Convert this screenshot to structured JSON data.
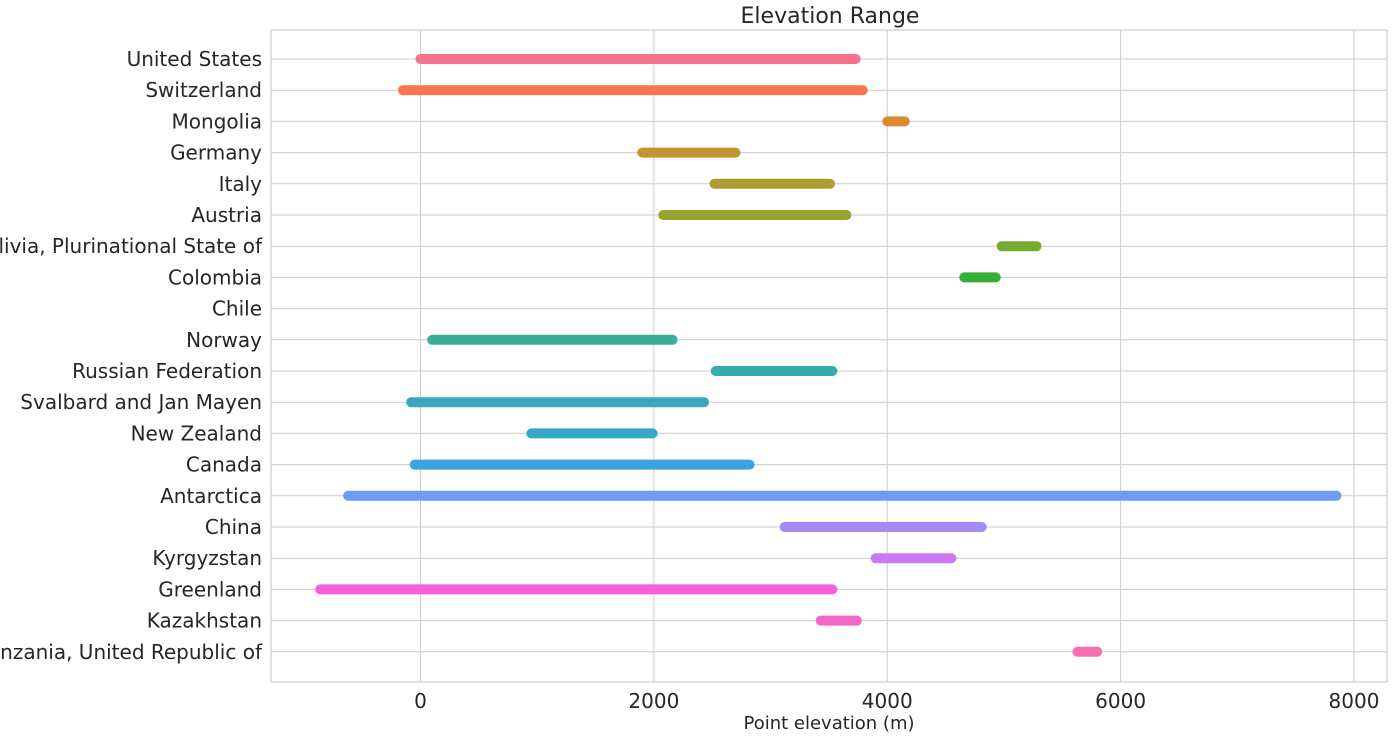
{
  "chart_data": {
    "type": "bar",
    "title": "Elevation Range",
    "xlabel": "Point elevation (m)",
    "ylabel": "",
    "xlim": [
      -1250,
      8250
    ],
    "xticks": [
      0,
      2000,
      4000,
      6000,
      8000
    ],
    "grid": true,
    "categories": [
      "United States",
      "Switzerland",
      "Mongolia",
      "Germany",
      "Italy",
      "Austria",
      "Bolivia, Plurinational State of",
      "Colombia",
      "Chile",
      "Norway",
      "Russian Federation",
      "Svalbard and Jan Mayen",
      "New Zealand",
      "Canada",
      "Antarctica",
      "China",
      "Kyrgyzstan",
      "Greenland",
      "Kazakhstan",
      "Tanzania, United Republic of"
    ],
    "ranges": [
      {
        "label": "United States",
        "min": 0,
        "max": 3730,
        "color": "#f77189"
      },
      {
        "label": "Switzerland",
        "min": -150,
        "max": 3790,
        "color": "#f7754f"
      },
      {
        "label": "Mongolia",
        "min": 4000,
        "max": 4150,
        "color": "#dc8932"
      },
      {
        "label": "Germany",
        "min": 1900,
        "max": 2700,
        "color": "#c39532"
      },
      {
        "label": "Italy",
        "min": 2520,
        "max": 3510,
        "color": "#ae9d31"
      },
      {
        "label": "Austria",
        "min": 2080,
        "max": 3650,
        "color": "#97a431"
      },
      {
        "label": "Bolivia, Plurinational State of",
        "min": 4980,
        "max": 5280,
        "color": "#77ab31"
      },
      {
        "label": "Colombia",
        "min": 4660,
        "max": 4930,
        "color": "#33b033"
      },
      {
        "label": "Chile",
        "min": null,
        "max": null,
        "color": "#35ae7b"
      },
      {
        "label": "Norway",
        "min": 100,
        "max": 2160,
        "color": "#36ad95"
      },
      {
        "label": "Russian Federation",
        "min": 2530,
        "max": 3530,
        "color": "#37abaa"
      },
      {
        "label": "Svalbard and Jan Mayen",
        "min": -80,
        "max": 2430,
        "color": "#38a9ba"
      },
      {
        "label": "New Zealand",
        "min": 950,
        "max": 1990,
        "color": "#39a7c6"
      },
      {
        "label": "Canada",
        "min": -50,
        "max": 2820,
        "color": "#3ba3dd"
      },
      {
        "label": "Antarctica",
        "min": -620,
        "max": 7850,
        "color": "#6e9bf4"
      },
      {
        "label": "China",
        "min": 3120,
        "max": 4810,
        "color": "#a48cf4"
      },
      {
        "label": "Kyrgyzstan",
        "min": 3900,
        "max": 4550,
        "color": "#cc7af4"
      },
      {
        "label": "Greenland",
        "min": -860,
        "max": 3530,
        "color": "#f461dd"
      },
      {
        "label": "Kazakhstan",
        "min": 3430,
        "max": 3740,
        "color": "#f566c6"
      },
      {
        "label": "Tanzania, United Republic of",
        "min": 5630,
        "max": 5800,
        "color": "#f66db1"
      }
    ]
  }
}
